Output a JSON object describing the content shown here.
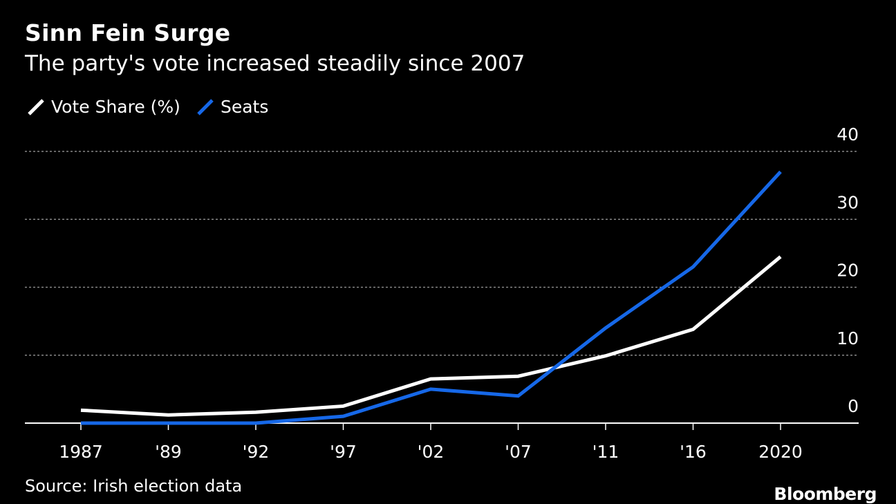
{
  "header": {
    "title": "Sinn Fein Surge",
    "subtitle": "The party's vote increased steadily since 2007"
  },
  "footer": {
    "source": "Source: Irish election data",
    "brand": "Bloomberg"
  },
  "colors": {
    "background": "#000000",
    "vote_share": "#ffffff",
    "seats": "#1668e8",
    "grid": "#888888"
  },
  "chart_data": {
    "type": "line",
    "title": "Sinn Fein Surge",
    "subtitle": "The party's vote increased steadily since 2007",
    "categories": [
      "1987",
      "'89",
      "'92",
      "'97",
      "'02",
      "'07",
      "'11",
      "'16",
      "2020"
    ],
    "series": [
      {
        "name": "Vote Share (%)",
        "color": "#ffffff",
        "values": [
          1.9,
          1.2,
          1.6,
          2.5,
          6.5,
          6.9,
          9.9,
          13.8,
          24.5
        ]
      },
      {
        "name": "Seats",
        "color": "#1668e8",
        "values": [
          0,
          0,
          0,
          1,
          5,
          4,
          14,
          23,
          37
        ]
      }
    ],
    "ylim": [
      0,
      40
    ],
    "yticks": [
      "0",
      "10",
      "20",
      "30",
      "40"
    ],
    "xlabel": "",
    "ylabel": "",
    "grid": true,
    "legend_position": "top-left"
  }
}
